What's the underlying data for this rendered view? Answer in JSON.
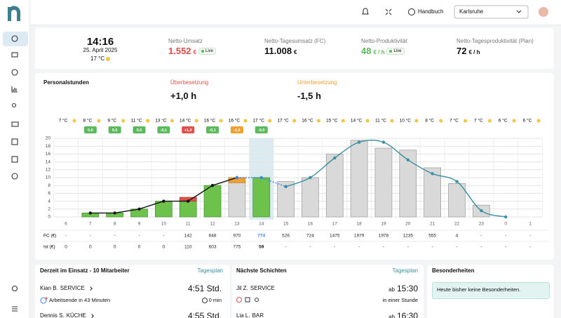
{
  "topbar": {
    "help": "Handbuch",
    "location": "Karlsruhe"
  },
  "kpis": {
    "time": "14:16",
    "date": "25. April 2025",
    "temperature": "17 °C",
    "items": [
      {
        "label": "Netto-Umsatz",
        "value": "1.552",
        "unit": "€",
        "badge": "Live",
        "color": "#e5484d"
      },
      {
        "label": "Netto-Tagesumsatz (FC)",
        "value": "11.008",
        "unit": "€",
        "color": "#111111"
      },
      {
        "label": "Netto-Produktivität",
        "value": "48",
        "unit": "€ / h",
        "badge": "Live",
        "color": "#5cb85c"
      },
      {
        "label": "Netto-Tagesproduktivität (Plan)",
        "value": "72",
        "unit": "€ / h",
        "color": "#111111"
      }
    ]
  },
  "staffing": {
    "title": "Personalstunden",
    "over": {
      "label": "Überbesetzung",
      "value": "+1,0 h"
    },
    "under": {
      "label": "Unterbesetzung",
      "value": "-1,5 h"
    }
  },
  "chart_data": {
    "type": "bar",
    "stacked": true,
    "grid": true,
    "categories": [
      "6",
      "7",
      "8",
      "9",
      "10",
      "11",
      "12",
      "13",
      "14",
      "15",
      "16",
      "17",
      "18",
      "19",
      "20",
      "21",
      "22",
      "23",
      "0",
      "1"
    ],
    "highlight": "14",
    "weather": [
      "7 °C",
      "8 °C",
      "9 °C",
      "11 °C",
      "13 °C",
      "14 °C",
      "16 °C",
      "16 °C",
      "17 °C",
      "17 °C",
      "16 °C",
      "15 °C",
      "14 °C",
      "11 °C",
      "10 °C",
      "8 °C",
      "7 °C",
      "7 °C",
      "6 °C",
      "6 °C"
    ],
    "badges": [
      null,
      {
        "label": "0,0",
        "color": "#5cb85c"
      },
      {
        "label": "0,0",
        "color": "#5cb85c"
      },
      {
        "label": "0,0",
        "color": "#5cb85c"
      },
      {
        "label": "-0,1",
        "color": "#5cb85c"
      },
      {
        "label": "+1,0",
        "color": "#e0504a"
      },
      {
        "label": "-0,1",
        "color": "#5cb85c"
      },
      {
        "label": "-1,3",
        "color": "#f0a030"
      },
      {
        "label": "-0,0",
        "color": "#5cb85c"
      },
      null,
      null,
      null,
      null,
      null,
      null,
      null,
      null,
      null,
      null,
      null
    ],
    "ylim": [
      0,
      20
    ],
    "yticks": [
      0,
      2,
      4,
      6,
      8,
      10,
      12,
      14,
      16,
      18,
      20
    ],
    "series": [
      {
        "kind": "bar",
        "color": "#d9d9d9",
        "stroke": "#9a9a9a",
        "values": [
          null,
          null,
          null,
          null,
          null,
          null,
          null,
          8.7,
          null,
          9,
          10,
          16,
          19.5,
          17.5,
          17,
          12.5,
          8.5,
          3,
          null,
          null
        ]
      },
      {
        "kind": "bar",
        "color": "#6cc24a",
        "stroke": "#3f8f2a",
        "values": [
          null,
          1,
          1,
          2,
          4,
          4,
          8,
          null,
          10,
          null,
          null,
          null,
          null,
          null,
          null,
          null,
          null,
          null,
          null,
          null
        ]
      },
      {
        "kind": "bar",
        "color": "#e0504a",
        "stroke": "#a83a35",
        "values": [
          null,
          null,
          null,
          null,
          null,
          1,
          null,
          null,
          null,
          null,
          null,
          null,
          null,
          null,
          null,
          null,
          null,
          null,
          null,
          null
        ]
      },
      {
        "kind": "bar",
        "color": "#f0a030",
        "stroke": "#c07a18",
        "values": [
          null,
          null,
          null,
          null,
          null,
          null,
          null,
          1.3,
          null,
          null,
          null,
          null,
          null,
          null,
          null,
          null,
          null,
          null,
          null,
          null
        ]
      },
      {
        "kind": "line",
        "color": "#111111",
        "values": [
          null,
          1,
          1,
          2,
          4,
          4,
          8,
          10,
          null,
          null,
          null,
          null,
          null,
          null,
          null,
          null,
          null,
          null,
          null,
          null
        ]
      },
      {
        "kind": "line",
        "color": "#3b82f6",
        "dashed": true,
        "values": [
          null,
          null,
          null,
          null,
          null,
          null,
          null,
          10,
          10,
          7.7,
          null,
          null,
          null,
          null,
          null,
          null,
          null,
          null,
          null,
          null
        ]
      },
      {
        "kind": "line",
        "color": "#3a8fa0",
        "smooth": true,
        "values": [
          null,
          null,
          null,
          null,
          null,
          null,
          null,
          null,
          null,
          7.7,
          10,
          15,
          19,
          19,
          14.5,
          11,
          9,
          1.6,
          0,
          null
        ]
      }
    ],
    "table": [
      {
        "label": "FC (€)",
        "color": "#3b82f6",
        "values": [
          "-",
          "-",
          "-",
          "-",
          "-",
          142,
          648,
          970,
          774,
          526,
          724,
          1475,
          1979,
          1978,
          1235,
          555,
          4,
          "-",
          "-",
          "-"
        ]
      },
      {
        "label": "Ist (€)",
        "color": "#111111",
        "values": [
          0,
          0,
          0,
          0,
          0,
          110,
          603,
          775,
          59,
          "-",
          "-",
          "-",
          "-",
          "-",
          "-",
          "-",
          "-",
          "-",
          "-",
          "-"
        ]
      }
    ]
  },
  "on_duty": {
    "title": "Derzeit im Einsatz - 10 Mitarbeiter",
    "link": "Tagesplan",
    "people": [
      {
        "name": "Kian B.",
        "role": "SERVICE",
        "hours": "4:51 Std.",
        "note": "Arbeitsende in 43 Minuten",
        "pause": "0 min"
      },
      {
        "name": "Dennis S.",
        "role": "KÜCHE",
        "hours": "4:55 Std."
      }
    ]
  },
  "next_shifts": {
    "title": "Nächste Schichten",
    "link": "Tagesplan",
    "people": [
      {
        "name": "Jil Z.",
        "role": "SERVICE",
        "from": "ab",
        "time": "15:30",
        "note": "in einer Stunde"
      },
      {
        "name": "Lia L.",
        "role": "BAR",
        "from": "ab",
        "time": "16:30"
      }
    ]
  },
  "notes": {
    "title": "Besonderheiten",
    "message": "Heute bisher keine Besonderheiten."
  }
}
